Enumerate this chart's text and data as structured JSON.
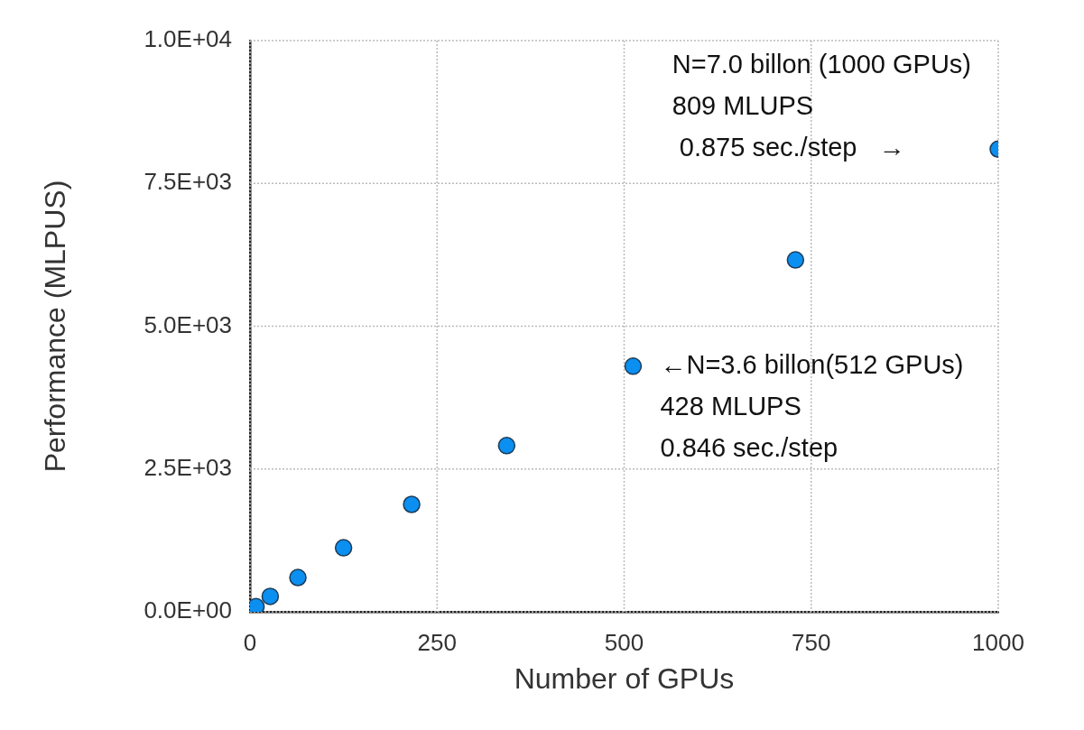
{
  "chart_data": {
    "type": "scatter",
    "xlabel": "Number of GPUs",
    "ylabel": "Performance (MLPUS)",
    "x": [
      8,
      27,
      64,
      125,
      216,
      343,
      512,
      729,
      1000
    ],
    "series": [
      {
        "color": "#0b8ff0",
        "values": [
          90,
          270,
          600,
          1120,
          1880,
          2910,
          4300,
          6160,
          8100
        ]
      }
    ],
    "xlim": [
      0,
      1000
    ],
    "xticks": [
      0,
      250,
      500,
      750,
      1000
    ],
    "ylim": [
      0,
      10000
    ],
    "yticks": [
      {
        "value": 0,
        "label": "0.0E+00"
      },
      {
        "value": 2500,
        "label": "2.5E+03"
      },
      {
        "value": 5000,
        "label": "5.0E+03"
      },
      {
        "value": 7500,
        "label": "7.5E+03"
      },
      {
        "value": 10000,
        "label": "1.0E+04"
      }
    ],
    "grid": true,
    "legend": false,
    "marker": "circle",
    "annotations": [
      {
        "text": "N=7.0 billon (1000 GPUs)\n809 MLUPS\n 0.875 sec./step   →",
        "x": 1000,
        "y": 8100
      },
      {
        "text": "←N=3.6 billon(512 GPUs)\n428 MLUPS\n0.846 sec./step",
        "x": 512,
        "y": 4300
      }
    ]
  }
}
